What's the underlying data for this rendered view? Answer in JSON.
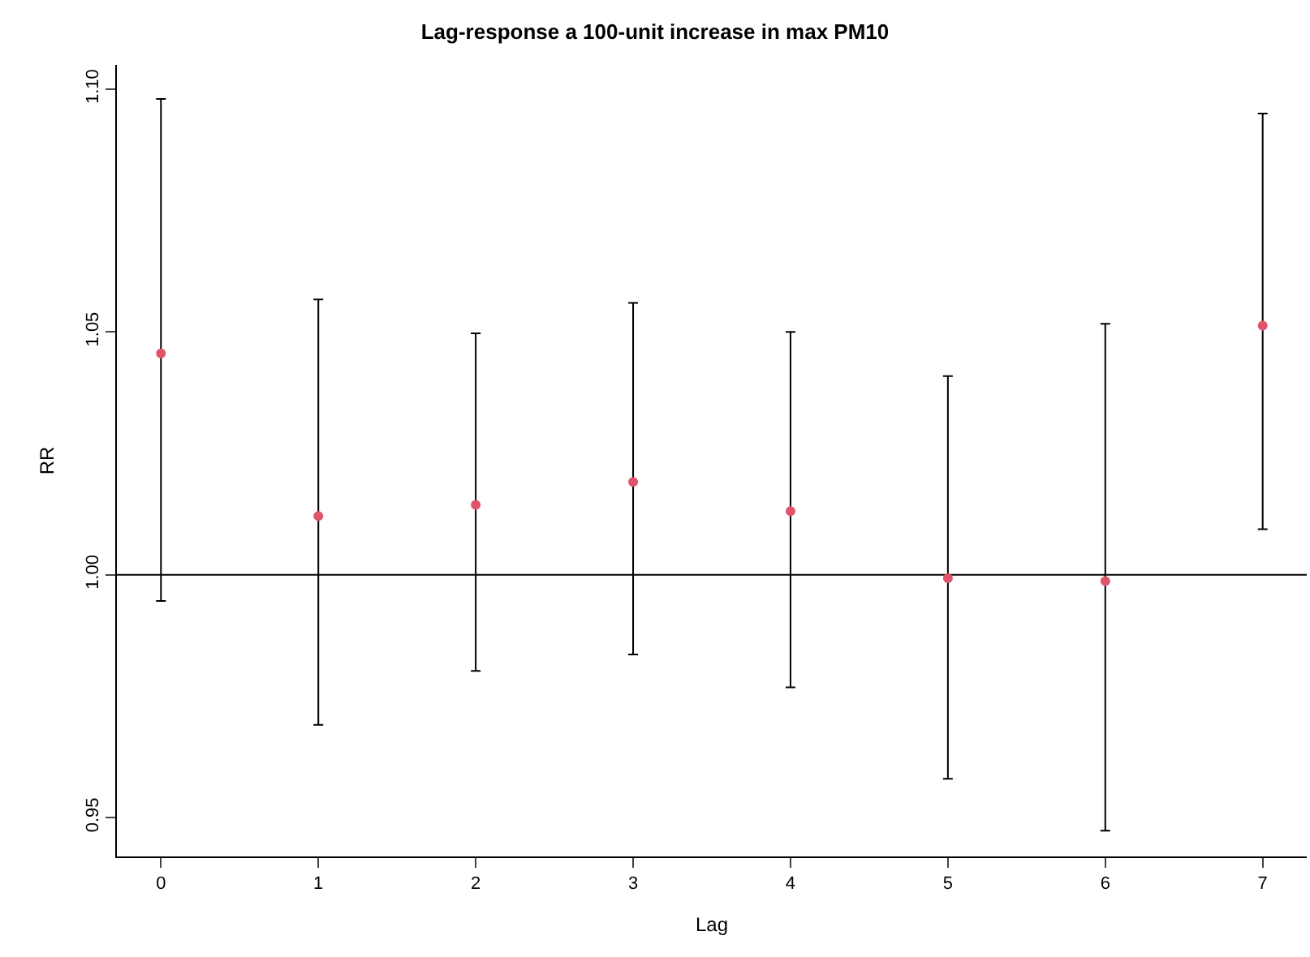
{
  "chart_data": {
    "type": "scatter",
    "title": "Lag-response a 100-unit increase in max PM10",
    "xlabel": "Lag",
    "ylabel": "RR",
    "x": [
      0,
      1,
      2,
      3,
      4,
      5,
      6,
      7
    ],
    "series": [
      {
        "color": "#df536b",
        "values": [
          1.0456,
          1.0121,
          1.0144,
          1.0191,
          1.0131,
          0.9993,
          0.9987,
          1.0513
        ],
        "errors": [
          [
            0.9946,
            1.098
          ],
          [
            0.9691,
            1.0567
          ],
          [
            0.9802,
            1.0497
          ],
          [
            0.9836,
            1.056
          ],
          [
            0.9768,
            1.05
          ],
          [
            0.958,
            1.0409
          ],
          [
            0.9473,
            1.0517
          ],
          [
            1.0094,
            1.095
          ]
        ]
      }
    ],
    "xlim": [
      -0.28,
      7.28
    ],
    "ylim": [
      0.942,
      1.105
    ],
    "xticks": [
      0,
      1,
      2,
      3,
      4,
      5,
      6,
      7
    ],
    "yticks": [
      {
        "value": 0.95,
        "label": "0.95"
      },
      {
        "value": 1.0,
        "label": "1.00"
      },
      {
        "value": 1.05,
        "label": "1.05"
      },
      {
        "value": 1.1,
        "label": "1.10"
      }
    ],
    "ref_lines": [
      {
        "axis": "y",
        "value": 1.0,
        "color": "#000000"
      }
    ],
    "marker": "circle",
    "grid": false
  }
}
